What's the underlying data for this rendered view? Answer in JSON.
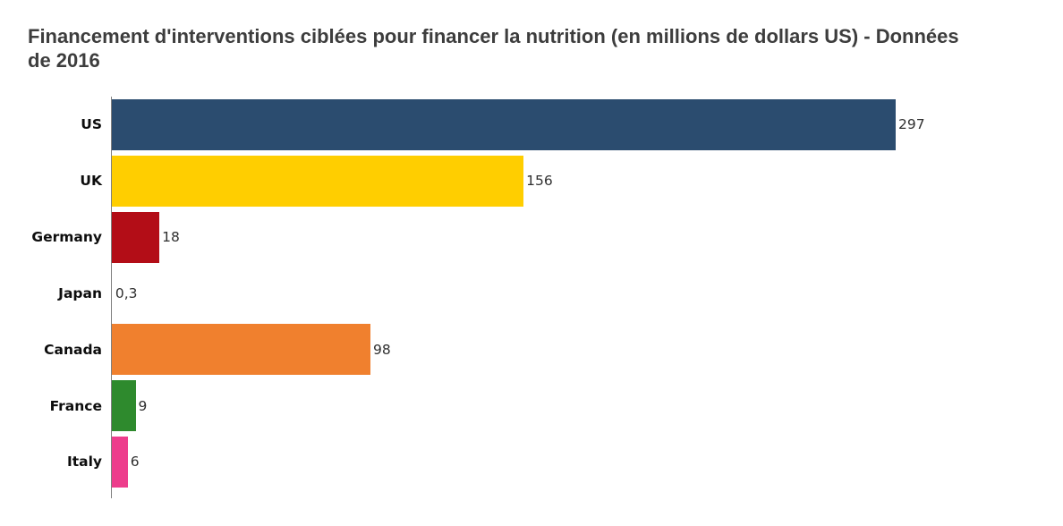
{
  "chart_data": {
    "type": "bar",
    "orientation": "horizontal",
    "title": "Financement d'interventions ciblées pour financer la nutrition (en millions de dollars US) - Données de 2016",
    "categories": [
      "US",
      "UK",
      "Germany",
      "Japan",
      "Canada",
      "France",
      "Italy"
    ],
    "values": [
      297,
      156,
      18,
      0.3,
      98,
      9,
      6
    ],
    "value_labels": [
      "297",
      "156",
      "18",
      "0,3",
      "98",
      "9",
      "6"
    ],
    "bar_colors": [
      "#2b4c6f",
      "#ffce00",
      "#b30d17",
      "#ffffff",
      "#f0802e",
      "#2e8a2d",
      "#ed3d8c"
    ],
    "xlabel": "",
    "ylabel": "",
    "xlim": [
      0,
      300
    ],
    "grid": false,
    "legend": false
  },
  "style": {
    "axis_line_color": "#7f7f7f",
    "title_color": "#3d3d3d",
    "label_color": "#0d0d0d",
    "value_color": "#303030",
    "background": "#ffffff"
  }
}
